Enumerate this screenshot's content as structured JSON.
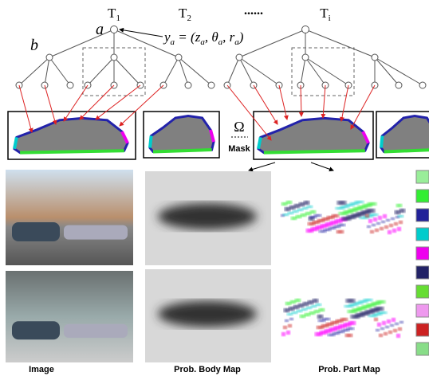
{
  "trees": [
    {
      "name": "T",
      "index": "1"
    },
    {
      "name": "T",
      "index": "2"
    },
    {
      "name": "T",
      "index": "i"
    }
  ],
  "ellipsis": "......",
  "node_labels": {
    "root": "a",
    "child": "b"
  },
  "formula": [
    {
      "text": "y",
      "sub": false
    },
    {
      "text": "a",
      "sub": true
    },
    {
      "text": " = (",
      "sub": false
    },
    {
      "text": "z",
      "sub": false
    },
    {
      "text": "a",
      "sub": true
    },
    {
      "text": ", ",
      "sub": false
    },
    {
      "text": "θ",
      "sub": false
    },
    {
      "text": "a",
      "sub": true
    },
    {
      "text": ", ",
      "sub": false
    },
    {
      "text": "r",
      "sub": false
    },
    {
      "text": "a",
      "sub": true
    },
    {
      "text": ")",
      "sub": false
    }
  ],
  "mask": {
    "symbol": "Ω",
    "label": "Mask"
  },
  "captions": [
    "Image",
    "Prob. Body Map",
    "Prob. Part Map"
  ]
}
